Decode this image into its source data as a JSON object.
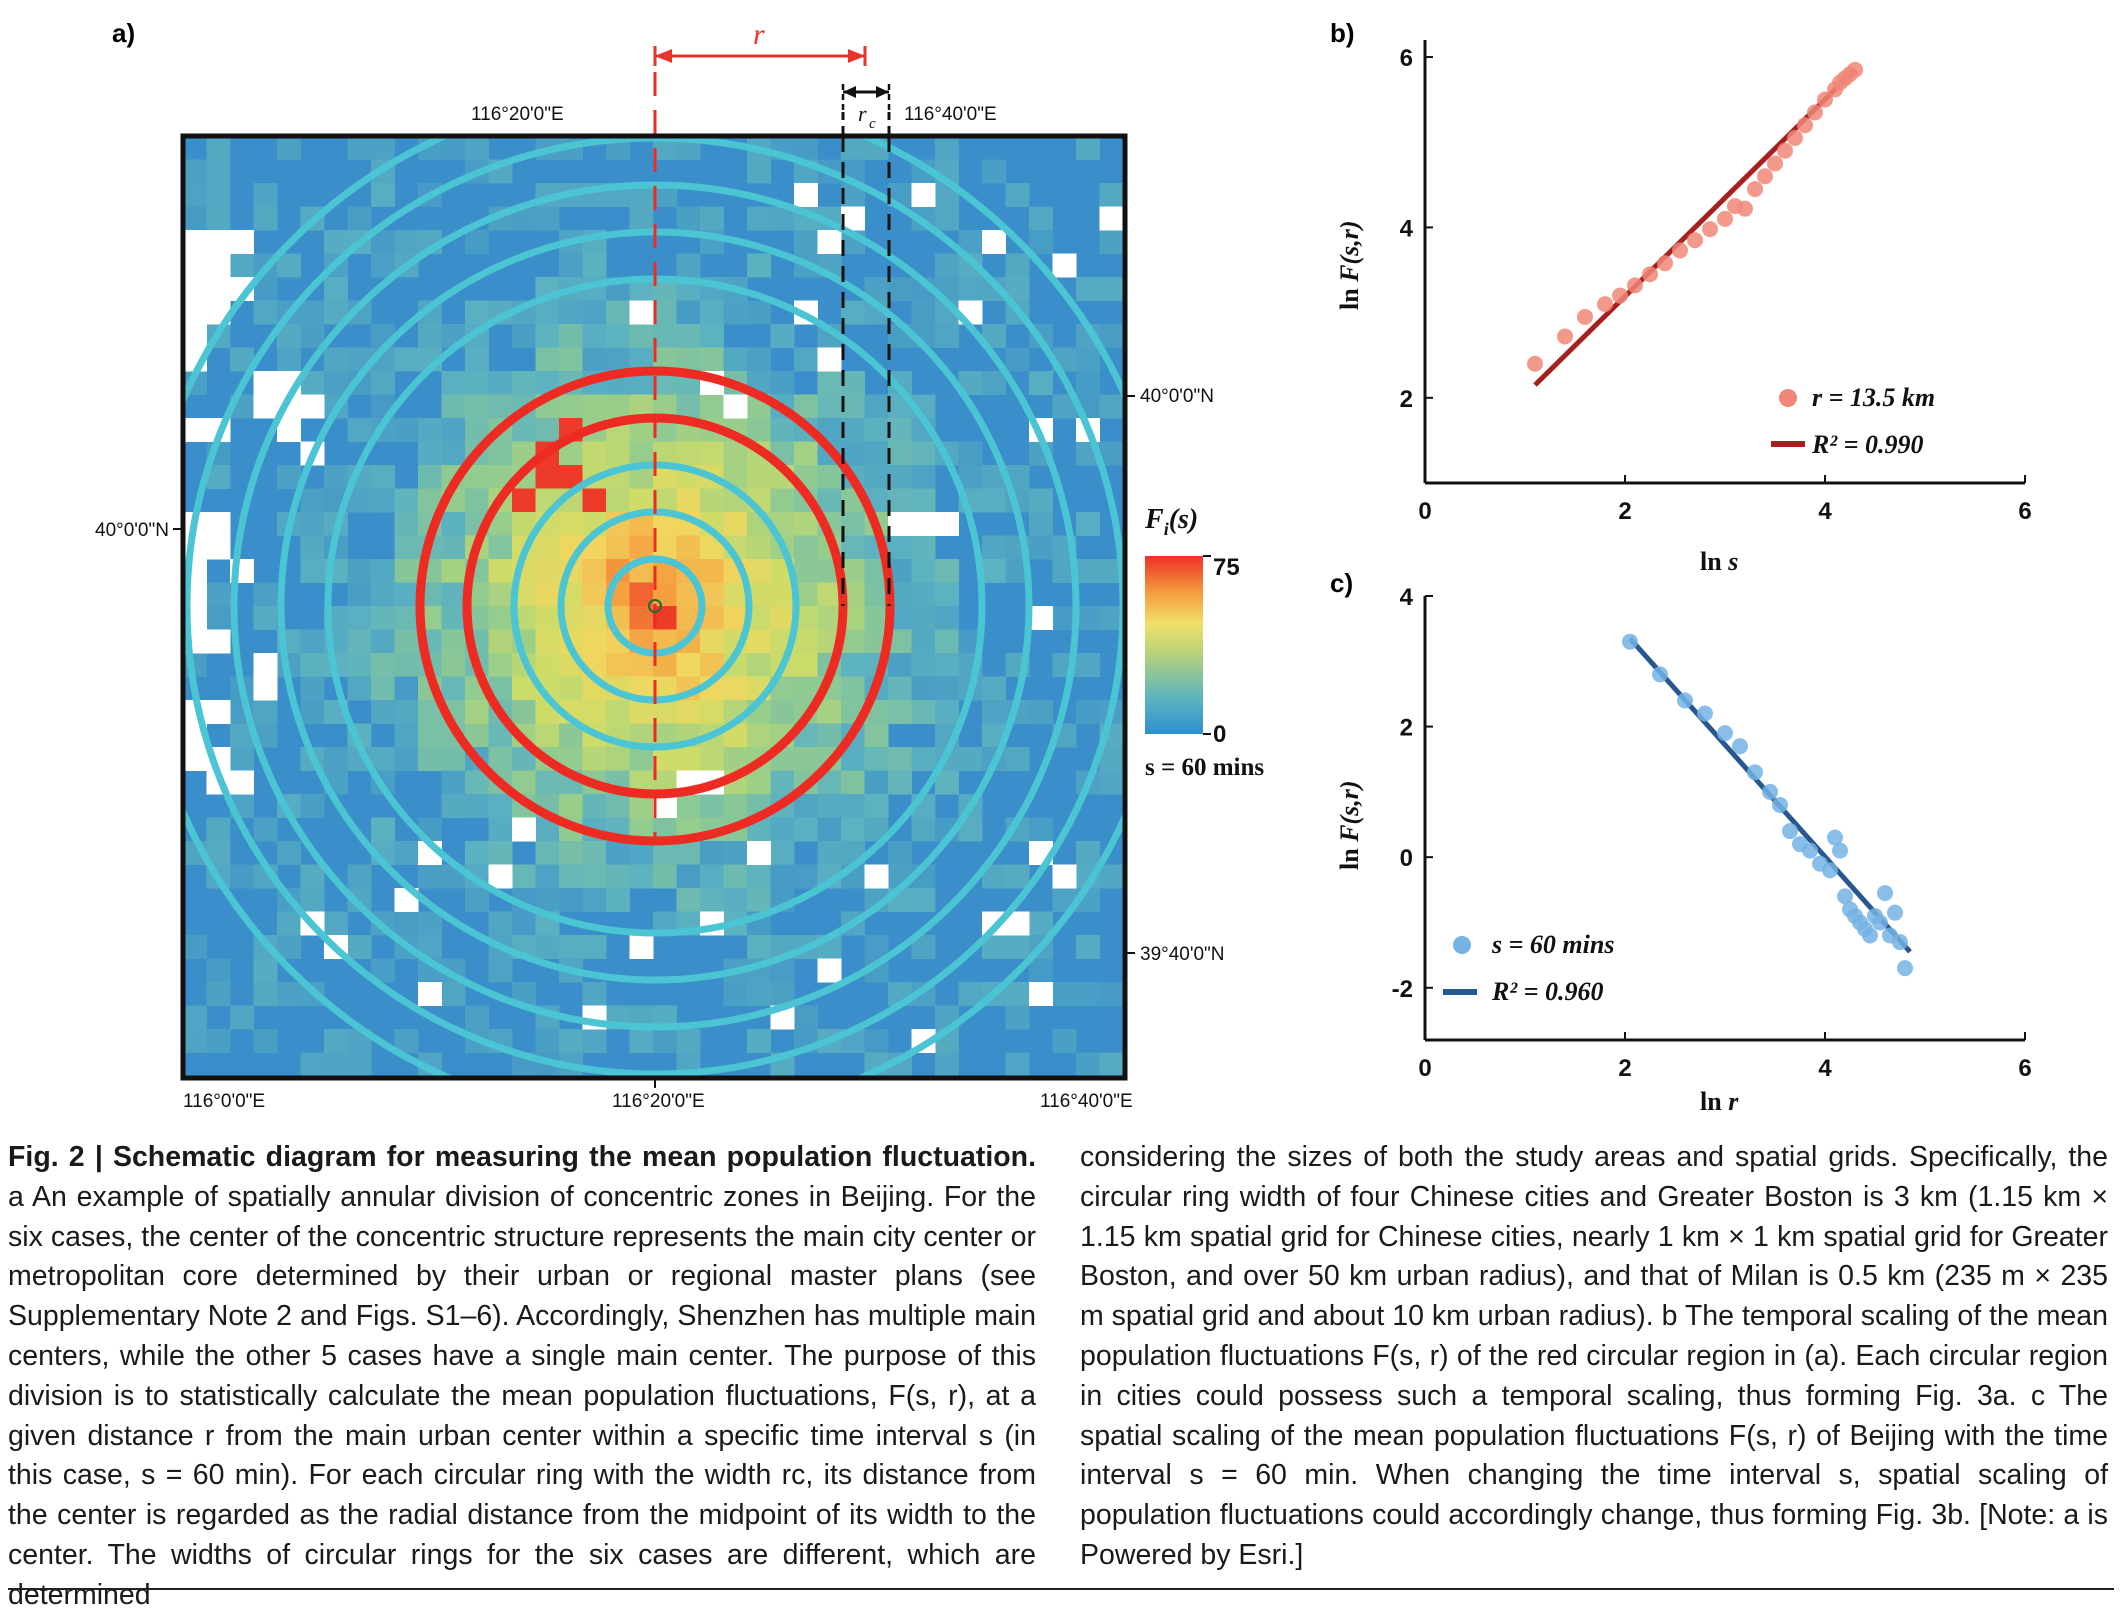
{
  "panel_a": {
    "label": "a)",
    "r_label": "r",
    "rc_label": "r",
    "rc_sub": "c",
    "top_lon_labels": [
      "116°20'0\"E",
      "116°40'0\"E"
    ],
    "bottom_lon_labels": [
      "116°0'0\"E",
      "116°20'0\"E",
      "116°40'0\"E"
    ],
    "left_lat_label": "40°0'0\"N",
    "right_lat_labels": [
      "40°0'0\"N",
      "39°40'0\"N"
    ],
    "colorbar": {
      "title_main": "F",
      "title_sub": "i",
      "title_rest": "(s)",
      "max_label": "75",
      "min_label": "0",
      "note": "s = 60 mins"
    },
    "colors": {
      "background_blue": "#3a8ec9",
      "ring_cyan": "#4bc4d4",
      "ring_red": "#ee2b22",
      "r_arrow": "#e8342a"
    }
  },
  "panel_b": {
    "label": "b)",
    "xlabel_main": "ln",
    "xlabel_var": "s",
    "ylabel_main": "ln",
    "ylabel_var": "F(s,r)",
    "x_ticks": [
      "0",
      "2",
      "4",
      "6"
    ],
    "y_ticks": [
      "2",
      "4",
      "6"
    ],
    "legend_points": "r = 13.5 km",
    "legend_fit": "R² = 0.990",
    "colors": {
      "points": "#f08778",
      "line": "#a5201f"
    }
  },
  "panel_c": {
    "label": "c)",
    "xlabel_main": "ln",
    "xlabel_var": "r",
    "ylabel_main": "ln",
    "ylabel_var": "F(s,r)",
    "x_ticks": [
      "0",
      "2",
      "4",
      "6"
    ],
    "y_ticks": [
      "-2",
      "0",
      "2",
      "4"
    ],
    "legend_points": "s = 60 mins",
    "legend_fit": "R² = 0.960",
    "colors": {
      "points": "#74b3e4",
      "line": "#26578f"
    }
  },
  "chart_data": [
    {
      "type": "scatter",
      "panel": "b",
      "xlim": [
        0,
        6
      ],
      "ylim": [
        1,
        6.2
      ],
      "series": [
        {
          "name": "r = 13.5 km",
          "x": [
            1.1,
            1.4,
            1.6,
            1.8,
            1.95,
            2.1,
            2.25,
            2.4,
            2.55,
            2.7,
            2.85,
            3.0,
            3.1,
            3.2,
            3.3,
            3.4,
            3.5,
            3.6,
            3.7,
            3.8,
            3.9,
            4.0,
            4.1,
            4.15,
            4.2,
            4.25,
            4.3
          ],
          "y": [
            2.4,
            2.72,
            2.95,
            3.1,
            3.2,
            3.32,
            3.45,
            3.58,
            3.73,
            3.85,
            3.98,
            4.1,
            4.25,
            4.22,
            4.45,
            4.6,
            4.75,
            4.9,
            5.05,
            5.2,
            5.35,
            5.5,
            5.62,
            5.7,
            5.75,
            5.8,
            5.85
          ]
        }
      ],
      "fit": {
        "name": "R² = 0.990",
        "x": [
          1.1,
          4.3
        ],
        "y": [
          2.15,
          5.85
        ]
      }
    },
    {
      "type": "scatter",
      "panel": "c",
      "xlim": [
        0,
        6
      ],
      "ylim": [
        -2.8,
        4
      ],
      "series": [
        {
          "name": "s = 60 mins",
          "x": [
            2.05,
            2.35,
            2.6,
            2.8,
            3.0,
            3.15,
            3.3,
            3.45,
            3.55,
            3.65,
            3.75,
            3.85,
            3.95,
            4.05,
            4.1,
            4.15,
            4.2,
            4.25,
            4.3,
            4.35,
            4.4,
            4.45,
            4.5,
            4.55,
            4.6,
            4.65,
            4.7,
            4.75,
            4.8
          ],
          "y": [
            3.3,
            2.8,
            2.4,
            2.2,
            1.9,
            1.7,
            1.3,
            1.0,
            0.8,
            0.4,
            0.2,
            0.1,
            -0.1,
            -0.2,
            0.3,
            0.1,
            -0.6,
            -0.8,
            -0.9,
            -1.0,
            -1.1,
            -1.2,
            -0.9,
            -1.0,
            -0.55,
            -1.2,
            -0.85,
            -1.3,
            -1.7
          ]
        }
      ],
      "fit": {
        "name": "R² = 0.960",
        "x": [
          2.05,
          4.85
        ],
        "y": [
          3.35,
          -1.45
        ]
      }
    }
  ],
  "caption": {
    "fig_label": "Fig. 2 | Schematic diagram for measuring the mean population fluctuation.",
    "left_text": " a An example of spatially annular division of concentric zones in Beijing. For the six cases, the center of the concentric structure represents the main city center or metropolitan core determined by their urban or regional master plans (see Supplementary Note 2 and Figs. S1–6). Accordingly, Shenzhen has multiple main centers, while the other 5 cases have a single main center. The purpose of this division is to statistically calculate the mean population fluctuations, F(s, r), at a given distance r from the main urban center within a specific time interval s (in this case, s = 60 min). For each circular ring with the width rc, its distance from the center is regarded as the radial distance from the midpoint of its width to the center. The widths of circular rings for the six cases are different, which are determined",
    "right_text": "considering the sizes of both the study areas and spatial grids. Specifically, the circular ring width of four Chinese cities and Greater Boston is 3 km (1.15 km × 1.15 km spatial grid for Chinese cities, nearly 1 km × 1 km spatial grid for Greater Boston, and over 50 km urban radius), and that of Milan is 0.5 km (235 m × 235 m spatial grid and about 10 km urban radius). b The temporal scaling of the mean population fluctuations F(s, r) of the red circular region in (a). Each circular region in cities could possess such a temporal scaling, thus forming Fig. 3a. c The spatial scaling of the mean population fluctuations F(s, r) of Beijing with the time interval s = 60 min. When changing the time interval s, spatial scaling of population fluctuations could accordingly change, thus forming Fig. 3b. [Note: a is Powered by Esri.]"
  }
}
